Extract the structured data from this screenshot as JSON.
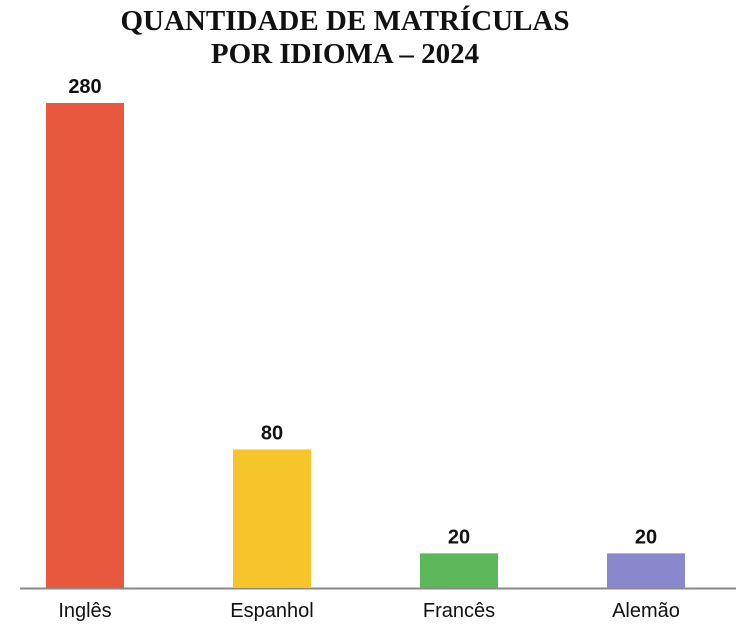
{
  "chart_data": {
    "type": "bar",
    "title": [
      "QUANTIDADE DE MATRÍCULAS",
      "POR IDIOMA – 2024"
    ],
    "categories": [
      "Inglês",
      "Espanhol",
      "Francês",
      "Alemão"
    ],
    "values": [
      280,
      80,
      20,
      20
    ],
    "colors": [
      "#e8583f",
      "#f6c52c",
      "#5cb65a",
      "#8a88cc"
    ]
  }
}
